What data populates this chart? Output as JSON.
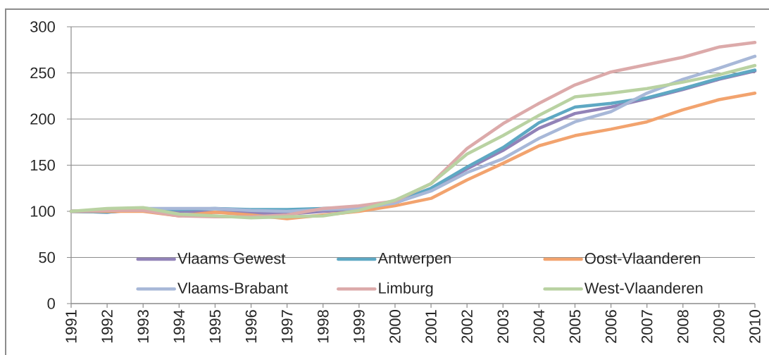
{
  "chart_data": {
    "type": "line",
    "categories": [
      "1991",
      "1992",
      "1993",
      "1994",
      "1995",
      "1996",
      "1997",
      "1998",
      "1999",
      "2000",
      "2001",
      "2002",
      "2003",
      "2004",
      "2005",
      "2006",
      "2007",
      "2008",
      "2009",
      "2010"
    ],
    "series": [
      {
        "name": "Vlaams Gewest",
        "color": "#9283b8",
        "values": [
          100,
          99,
          102,
          100,
          99,
          98,
          97,
          100,
          102,
          109,
          124,
          146,
          166,
          190,
          206,
          213,
          222,
          232,
          243,
          252
        ]
      },
      {
        "name": "Antwerpen",
        "color": "#5ea8c3",
        "values": [
          100,
          99,
          103,
          102,
          103,
          102,
          102,
          103,
          104,
          110,
          125,
          148,
          169,
          196,
          213,
          217,
          223,
          233,
          244,
          253
        ]
      },
      {
        "name": "Oost-Vlaanderen",
        "color": "#f2a36e",
        "values": [
          100,
          100,
          100,
          95,
          99,
          96,
          92,
          96,
          100,
          106,
          114,
          134,
          152,
          171,
          182,
          189,
          197,
          210,
          221,
          228
        ]
      },
      {
        "name": "Vlaams-Brabant",
        "color": "#a8b8d8",
        "values": [
          100,
          101,
          103,
          103,
          103,
          101,
          100,
          102,
          103,
          109,
          122,
          142,
          157,
          179,
          197,
          208,
          228,
          243,
          255,
          268
        ]
      },
      {
        "name": "Limburg",
        "color": "#dcaaaa",
        "values": [
          100,
          101,
          101,
          95,
          94,
          94,
          96,
          103,
          106,
          111,
          130,
          168,
          195,
          217,
          237,
          251,
          259,
          267,
          278,
          283
        ]
      },
      {
        "name": "West-Vlaanderen",
        "color": "#b9d2a2",
        "values": [
          100,
          103,
          104,
          97,
          95,
          93,
          94,
          95,
          101,
          112,
          130,
          162,
          182,
          204,
          224,
          228,
          233,
          240,
          248,
          258
        ]
      }
    ],
    "ylim": [
      0,
      300
    ],
    "yticks": [
      0,
      50,
      100,
      150,
      200,
      250,
      300
    ],
    "grid": "y",
    "legend": "bottom"
  }
}
